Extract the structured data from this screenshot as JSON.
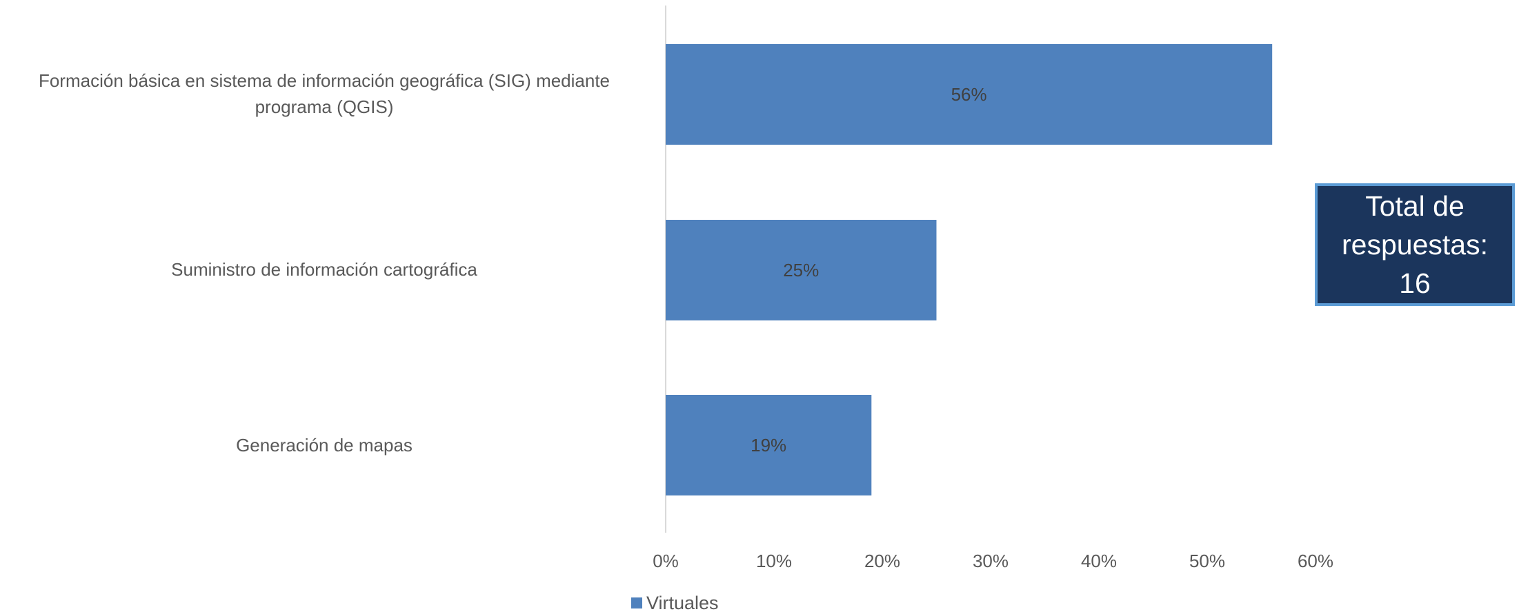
{
  "chart_data": {
    "type": "bar",
    "orientation": "horizontal",
    "categories": [
      "Formación básica en sistema de información geográfica (SIG) mediante programa (QGIS)",
      "Suministro de información cartográfica",
      "Generación de mapas"
    ],
    "category_lines": [
      [
        "Formación básica en sistema de información geográfica (SIG) mediante",
        "programa (QGIS)"
      ],
      [
        "Suministro de información cartográfica"
      ],
      [
        "Generación de mapas"
      ]
    ],
    "series": [
      {
        "name": "Virtuales",
        "values": [
          56,
          25,
          19
        ],
        "color": "#4f81bd"
      }
    ],
    "data_labels": [
      "56%",
      "25%",
      "19%"
    ],
    "xlim": [
      0,
      60
    ],
    "x_ticks": [
      "0%",
      "10%",
      "20%",
      "30%",
      "40%",
      "50%",
      "60%"
    ],
    "grid": false,
    "legend_position": "bottom"
  },
  "annotation": {
    "lines": [
      "Total de",
      "respuestas:",
      "16"
    ]
  },
  "colors": {
    "bar": "#4f81bd",
    "text": "#595959",
    "data_label": "#404040",
    "box_fill": "#1b355c",
    "box_border": "#5b9bd5",
    "axis": "#d9d9d9"
  }
}
